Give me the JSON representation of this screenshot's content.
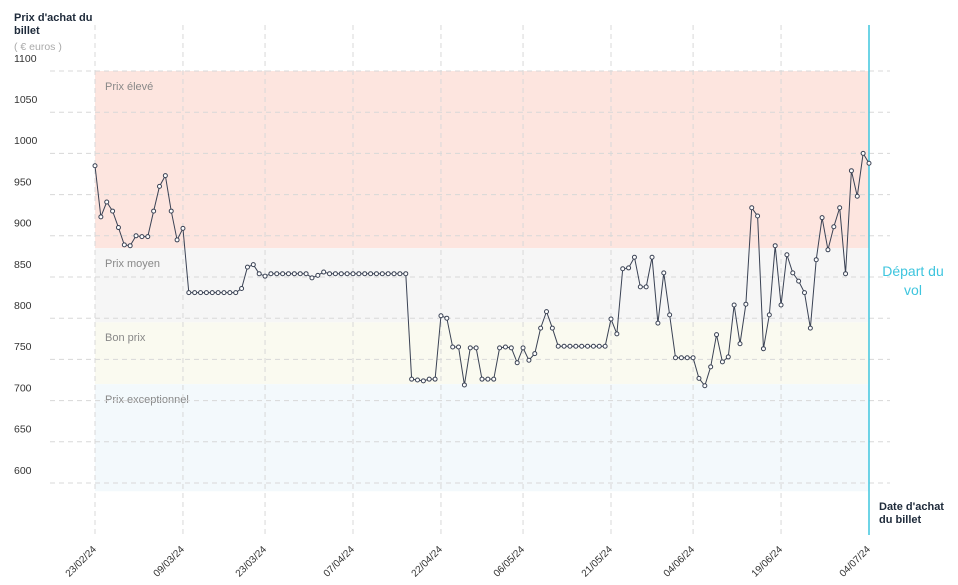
{
  "chart_data": {
    "type": "line",
    "y_label": "Prix d'achat du billet",
    "y_unit": "( € euros )",
    "x_label": "Date d'achat du billet",
    "ylim": [
      580,
      1110
    ],
    "yticks": [
      600,
      650,
      700,
      750,
      800,
      850,
      900,
      950,
      1000,
      1050,
      1100
    ],
    "xlim": [
      "23/02/24",
      "04/07/24"
    ],
    "xticks": [
      "23/02/24",
      "09/03/24",
      "23/03/24",
      "07/04/24",
      "22/04/24",
      "06/05/24",
      "21/05/24",
      "04/06/24",
      "19/06/24",
      "04/07/24"
    ],
    "grid": true,
    "bands": [
      {
        "label": "Prix élevé",
        "range": [
          885,
          1100
        ],
        "color": "#fde5df"
      },
      {
        "label": "Prix moyen",
        "range": [
          795,
          885
        ],
        "color": "#f6f6f6"
      },
      {
        "label": "Bon prix",
        "range": [
          720,
          795
        ],
        "color": "#fafaf0"
      },
      {
        "label": "Prix exceptionnel",
        "range": [
          590,
          720
        ],
        "color": "#f3f9fc"
      }
    ],
    "annotation": {
      "x": "04/07/24",
      "label": "Départ du vol",
      "color": "#3ec5de"
    },
    "x": [
      "23/02/24",
      "24/02/24",
      "25/02/24",
      "26/02/24",
      "27/02/24",
      "28/02/24",
      "29/02/24",
      "01/03/24",
      "02/03/24",
      "03/03/24",
      "04/03/24",
      "05/03/24",
      "06/03/24",
      "07/03/24",
      "08/03/24",
      "09/03/24",
      "10/03/24",
      "11/03/24",
      "12/03/24",
      "13/03/24",
      "14/03/24",
      "15/03/24",
      "16/03/24",
      "17/03/24",
      "18/03/24",
      "19/03/24",
      "20/03/24",
      "21/03/24",
      "22/03/24",
      "23/03/24",
      "24/03/24",
      "25/03/24",
      "26/03/24",
      "27/03/24",
      "28/03/24",
      "29/03/24",
      "30/03/24",
      "31/03/24",
      "01/04/24",
      "02/04/24",
      "03/04/24",
      "04/04/24",
      "05/04/24",
      "06/04/24",
      "07/04/24",
      "08/04/24",
      "09/04/24",
      "10/04/24",
      "11/04/24",
      "12/04/24",
      "13/04/24",
      "14/04/24",
      "15/04/24",
      "16/04/24",
      "17/04/24",
      "18/04/24",
      "19/04/24",
      "20/04/24",
      "21/04/24",
      "22/04/24",
      "23/04/24",
      "24/04/24",
      "25/04/24",
      "26/04/24",
      "27/04/24",
      "28/04/24",
      "29/04/24",
      "30/04/24",
      "01/05/24",
      "02/05/24",
      "03/05/24",
      "04/05/24",
      "05/05/24",
      "06/05/24",
      "07/05/24",
      "08/05/24",
      "09/05/24",
      "10/05/24",
      "11/05/24",
      "12/05/24",
      "13/05/24",
      "14/05/24",
      "15/05/24",
      "16/05/24",
      "17/05/24",
      "18/05/24",
      "19/05/24",
      "20/05/24",
      "21/05/24",
      "22/05/24",
      "23/05/24",
      "24/05/24",
      "25/05/24",
      "26/05/24",
      "27/05/24",
      "28/05/24",
      "29/05/24",
      "30/05/24",
      "31/05/24",
      "01/06/24",
      "02/06/24",
      "03/06/24",
      "04/06/24",
      "05/06/24",
      "06/06/24",
      "07/06/24",
      "08/06/24",
      "09/06/24",
      "10/06/24",
      "11/06/24",
      "12/06/24",
      "13/06/24",
      "14/06/24",
      "15/06/24",
      "16/06/24",
      "17/06/24",
      "18/06/24",
      "19/06/24",
      "20/06/24",
      "21/06/24",
      "22/06/24",
      "23/06/24",
      "24/06/24",
      "25/06/24",
      "26/06/24",
      "27/06/24",
      "28/06/24",
      "29/06/24",
      "30/06/24",
      "01/07/24",
      "02/07/24",
      "03/07/24",
      "04/07/24"
    ],
    "series": [
      {
        "color": "#3a4254",
        "values": [
          985,
          923,
          941,
          930,
          910,
          889,
          888,
          900,
          899,
          899,
          930,
          960,
          973,
          930,
          895,
          909,
          831,
          831,
          831,
          831,
          831,
          831,
          831,
          831,
          831,
          836,
          862,
          865,
          854,
          851,
          854,
          854,
          854,
          854,
          854,
          854,
          854,
          849,
          852,
          856,
          854,
          854,
          854,
          854,
          854,
          854,
          854,
          854,
          854,
          854,
          854,
          854,
          854,
          854,
          726,
          725,
          724,
          726,
          726,
          803,
          800,
          765,
          765,
          719,
          764,
          764,
          726,
          726,
          726,
          764,
          765,
          764,
          746,
          764,
          749,
          757,
          788,
          808,
          788,
          766,
          766,
          766,
          766,
          766,
          766,
          766,
          766,
          766,
          799,
          781,
          860,
          861,
          874,
          838,
          838,
          874,
          794,
          855,
          804,
          752,
          752,
          752,
          752,
          727,
          718,
          741,
          780,
          747,
          753,
          816,
          769,
          817,
          934,
          924,
          763,
          804,
          888,
          816,
          877,
          855,
          845,
          831,
          788,
          871,
          922,
          883,
          911,
          934,
          854,
          979,
          948,
          1000,
          988
        ]
      }
    ]
  }
}
